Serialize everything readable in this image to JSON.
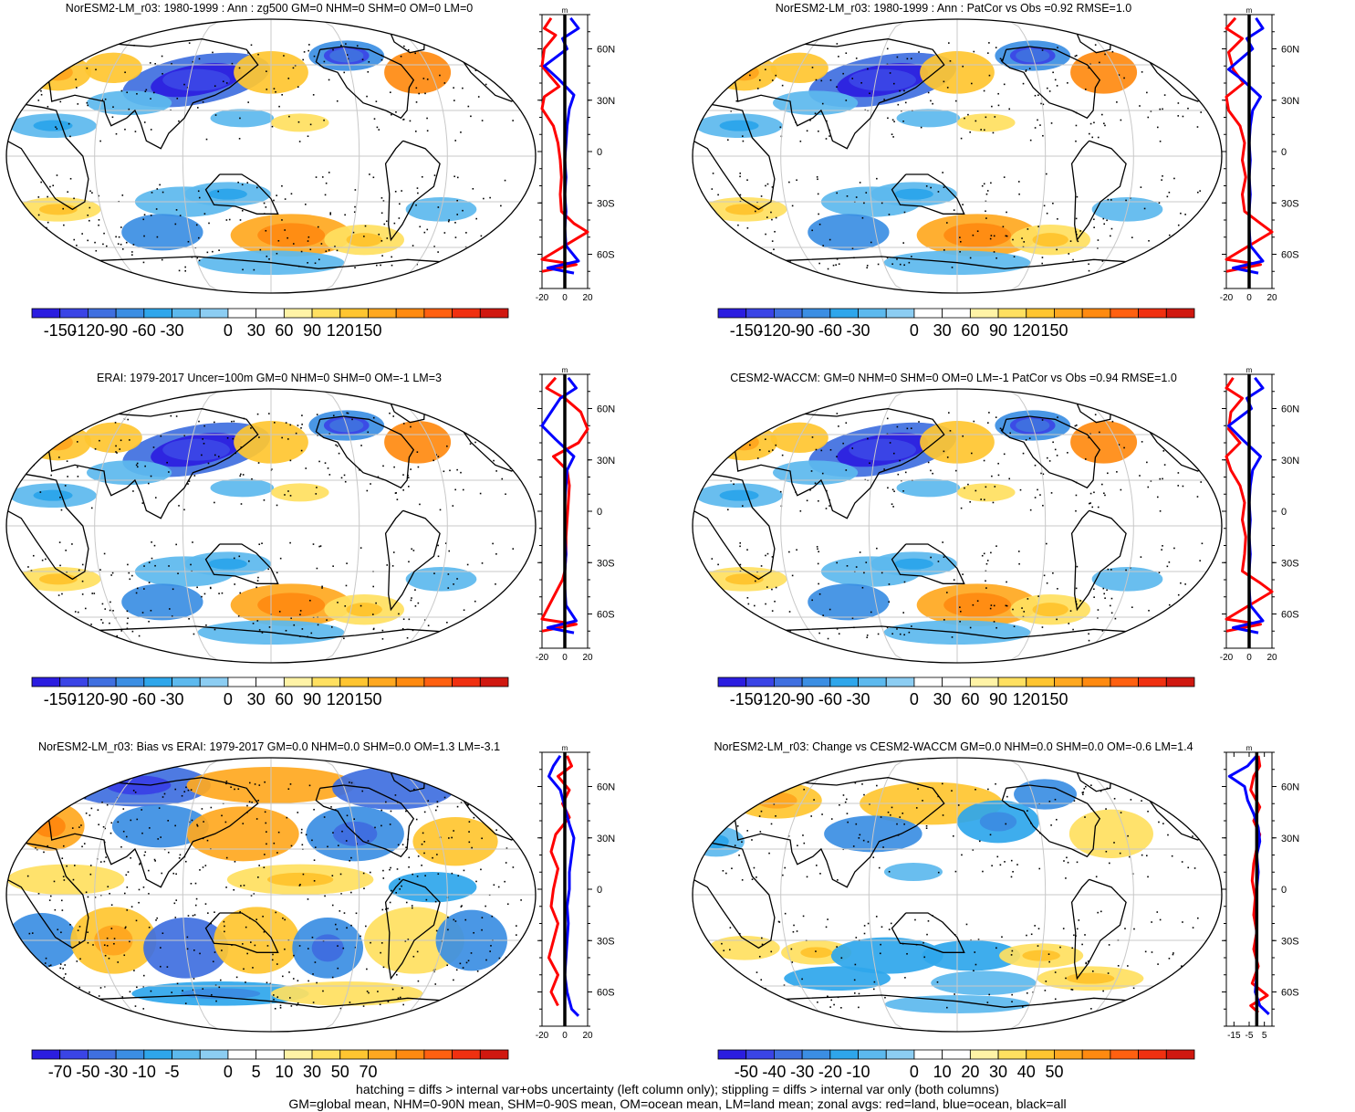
{
  "colors": {
    "scale": [
      "#2b1de0",
      "#3a44e6",
      "#3f6fe0",
      "#3b8ee3",
      "#2ea6eb",
      "#5cb9ee",
      "#8ccdf2",
      "#ffffff",
      "#ffffff",
      "#fff3a6",
      "#ffe060",
      "#ffc530",
      "#ffa820",
      "#ff8a10",
      "#ff6010",
      "#f03010",
      "#d01810"
    ],
    "land": "#ff0000",
    "ocean": "#0000ff",
    "all": "#000000",
    "grid": "#c8c8c8",
    "coast": "#000000"
  },
  "footer": {
    "line1": "hatching = diffs > internal var+obs uncertainty (left column only); stippling = diffs > internal var only (both columns)",
    "line2": "GM=global mean, NHM=0-90N mean, SHM=0-90S mean, OM=ocean mean, LM=land mean; zonal avgs: red=land, blue=ocean, black=all"
  },
  "chart_data": [
    {
      "type": "heatmap",
      "title": "NorESM2-LM_r03: 1980-1999 : Ann : zg500 GM=0 NHM=0 SHM=0 OM=0 LM=0",
      "colorbar_labels": [
        "-150",
        "-120",
        "-90",
        "-60",
        "-30",
        "0",
        "30",
        "60",
        "90",
        "120",
        "150"
      ],
      "zonal": {
        "unit": "m",
        "xlim": [
          -20,
          20
        ],
        "xticks": [
          "-20",
          "0",
          "20"
        ],
        "ylabels": [
          "60N",
          "30N",
          "0",
          "30S",
          "60S"
        ],
        "land": [
          [
            -12,
            78
          ],
          [
            -18,
            72
          ],
          [
            -8,
            68
          ],
          [
            -18,
            60
          ],
          [
            -20,
            50
          ],
          [
            -14,
            45
          ],
          [
            -5,
            38
          ],
          [
            -18,
            32
          ],
          [
            -20,
            25
          ],
          [
            -10,
            15
          ],
          [
            -6,
            5
          ],
          [
            -4,
            -5
          ],
          [
            -3,
            -15
          ],
          [
            -4,
            -25
          ],
          [
            -3,
            -35
          ],
          [
            8,
            -42
          ],
          [
            20,
            -47
          ],
          [
            -20,
            -63
          ],
          [
            10,
            -66
          ],
          [
            -20,
            -70
          ]
        ],
        "ocean": [
          [
            5,
            78
          ],
          [
            12,
            72
          ],
          [
            -2,
            66
          ],
          [
            2,
            60
          ],
          [
            -18,
            50
          ],
          [
            -5,
            42
          ],
          [
            8,
            33
          ],
          [
            4,
            25
          ],
          [
            2,
            15
          ],
          [
            1,
            5
          ],
          [
            0,
            -5
          ],
          [
            1,
            -15
          ],
          [
            0,
            -25
          ],
          [
            1,
            -35
          ],
          [
            0,
            -45
          ],
          [
            1,
            -55
          ],
          [
            12,
            -64
          ],
          [
            -15,
            -68
          ],
          [
            8,
            -71
          ]
        ]
      }
    },
    {
      "type": "heatmap",
      "title": "NorESM2-LM_r03: 1980-1999 : Ann : PatCor vs Obs =0.92 RMSE=1.0",
      "colorbar_labels": [
        "-150",
        "-120",
        "-90",
        "-60",
        "-30",
        "0",
        "30",
        "60",
        "90",
        "120",
        "150"
      ],
      "zonal": {
        "unit": "m",
        "xlim": [
          -20,
          20
        ],
        "xticks": [
          "-20",
          "0",
          "20"
        ],
        "ylabels": [
          "60N",
          "30N",
          "0",
          "30S",
          "60S"
        ],
        "land": [
          [
            -12,
            78
          ],
          [
            -20,
            72
          ],
          [
            -6,
            66
          ],
          [
            -18,
            58
          ],
          [
            -14,
            48
          ],
          [
            -5,
            40
          ],
          [
            -20,
            32
          ],
          [
            -18,
            24
          ],
          [
            -8,
            15
          ],
          [
            -4,
            5
          ],
          [
            -6,
            -5
          ],
          [
            -3,
            -15
          ],
          [
            -6,
            -25
          ],
          [
            -4,
            -35
          ],
          [
            10,
            -42
          ],
          [
            20,
            -47
          ],
          [
            -20,
            -63
          ],
          [
            10,
            -66
          ],
          [
            -20,
            -70
          ]
        ],
        "ocean": [
          [
            6,
            78
          ],
          [
            12,
            72
          ],
          [
            -2,
            66
          ],
          [
            3,
            60
          ],
          [
            -18,
            48
          ],
          [
            -6,
            42
          ],
          [
            10,
            32
          ],
          [
            3,
            24
          ],
          [
            1,
            15
          ],
          [
            0,
            5
          ],
          [
            1,
            -5
          ],
          [
            0,
            -15
          ],
          [
            1,
            -25
          ],
          [
            0,
            -35
          ],
          [
            0,
            -45
          ],
          [
            1,
            -55
          ],
          [
            12,
            -64
          ],
          [
            -14,
            -68
          ],
          [
            8,
            -71
          ]
        ]
      }
    },
    {
      "type": "heatmap",
      "title": "ERAI: 1979-2017 Uncer=100m GM=0 NHM=0 SHM=0 OM=-1 LM=3",
      "colorbar_labels": [
        "-150",
        "-120",
        "-90",
        "-60",
        "-30",
        "0",
        "30",
        "60",
        "90",
        "120",
        "150"
      ],
      "zonal": {
        "unit": "m",
        "xlim": [
          -20,
          20
        ],
        "xticks": [
          "-20",
          "0",
          "20"
        ],
        "ylabels": [
          "60N",
          "30N",
          "0",
          "30S",
          "60S"
        ],
        "land": [
          [
            -8,
            78
          ],
          [
            -16,
            72
          ],
          [
            0,
            66
          ],
          [
            14,
            58
          ],
          [
            20,
            48
          ],
          [
            12,
            40
          ],
          [
            -10,
            32
          ],
          [
            2,
            24
          ],
          [
            4,
            15
          ],
          [
            3,
            5
          ],
          [
            2,
            -5
          ],
          [
            1,
            -15
          ],
          [
            1,
            -25
          ],
          [
            0,
            -35
          ],
          [
            -2,
            -40
          ],
          [
            -20,
            -63
          ],
          [
            10,
            -66
          ],
          [
            -20,
            -70
          ]
        ],
        "ocean": [
          [
            3,
            78
          ],
          [
            10,
            72
          ],
          [
            -4,
            66
          ],
          [
            -10,
            60
          ],
          [
            -20,
            50
          ],
          [
            -8,
            42
          ],
          [
            8,
            32
          ],
          [
            2,
            24
          ],
          [
            1,
            15
          ],
          [
            0,
            5
          ],
          [
            0,
            -5
          ],
          [
            0,
            -15
          ],
          [
            1,
            -25
          ],
          [
            0,
            -35
          ],
          [
            0,
            -45
          ],
          [
            1,
            -55
          ],
          [
            10,
            -64
          ],
          [
            -15,
            -68
          ],
          [
            8,
            -71
          ]
        ]
      }
    },
    {
      "type": "heatmap",
      "title": "CESM2-WACCM: GM=0 NHM=0 SHM=0 OM=0 LM=-1 PatCor vs Obs =0.94 RMSE=1.0",
      "colorbar_labels": [
        "-150",
        "-120",
        "-90",
        "-60",
        "-30",
        "0",
        "30",
        "60",
        "90",
        "120",
        "150"
      ],
      "zonal": {
        "unit": "m",
        "xlim": [
          -20,
          20
        ],
        "xticks": [
          "-20",
          "0",
          "20"
        ],
        "ylabels": [
          "60N",
          "30N",
          "0",
          "30S",
          "60S"
        ],
        "land": [
          [
            -14,
            78
          ],
          [
            -20,
            72
          ],
          [
            -6,
            66
          ],
          [
            -16,
            58
          ],
          [
            -18,
            48
          ],
          [
            -8,
            40
          ],
          [
            -20,
            32
          ],
          [
            -16,
            24
          ],
          [
            -8,
            15
          ],
          [
            -4,
            5
          ],
          [
            -6,
            -5
          ],
          [
            -3,
            -15
          ],
          [
            -4,
            -25
          ],
          [
            -6,
            -35
          ],
          [
            10,
            -42
          ],
          [
            20,
            -47
          ],
          [
            -20,
            -63
          ],
          [
            10,
            -66
          ],
          [
            -20,
            -70
          ]
        ],
        "ocean": [
          [
            5,
            78
          ],
          [
            12,
            72
          ],
          [
            -2,
            66
          ],
          [
            2,
            60
          ],
          [
            -18,
            50
          ],
          [
            -6,
            42
          ],
          [
            10,
            32
          ],
          [
            3,
            24
          ],
          [
            1,
            15
          ],
          [
            0,
            5
          ],
          [
            1,
            -5
          ],
          [
            0,
            -15
          ],
          [
            1,
            -25
          ],
          [
            0,
            -35
          ],
          [
            0,
            -45
          ],
          [
            1,
            -55
          ],
          [
            12,
            -64
          ],
          [
            -14,
            -68
          ],
          [
            8,
            -71
          ]
        ]
      }
    },
    {
      "type": "heatmap",
      "title": "NorESM2-LM_r03: Bias vs ERAI: 1979-2017 GM=0.0 NHM=0.0 SHM=0.0 OM=1.3 LM=-3.1",
      "colorbar_labels": [
        "-70",
        "-50",
        "-30",
        "-10",
        "-5",
        "0",
        "5",
        "10",
        "30",
        "50",
        "70"
      ],
      "zonal": {
        "unit": "m",
        "xlim": [
          -20,
          20
        ],
        "xticks": [
          "-20",
          "0",
          "20"
        ],
        "ylabels": [
          "60N",
          "30N",
          "0",
          "30S",
          "60S"
        ],
        "land": [
          [
            2,
            78
          ],
          [
            6,
            72
          ],
          [
            -6,
            66
          ],
          [
            4,
            58
          ],
          [
            -2,
            50
          ],
          [
            4,
            42
          ],
          [
            -8,
            32
          ],
          [
            -12,
            22
          ],
          [
            -6,
            12
          ],
          [
            -10,
            0
          ],
          [
            -12,
            -10
          ],
          [
            -6,
            -20
          ],
          [
            -10,
            -30
          ],
          [
            -14,
            -40
          ],
          [
            -6,
            -50
          ],
          [
            -12,
            -60
          ],
          [
            -6,
            -68
          ]
        ],
        "ocean": [
          [
            -4,
            78
          ],
          [
            -10,
            72
          ],
          [
            -14,
            66
          ],
          [
            -4,
            58
          ],
          [
            0,
            48
          ],
          [
            4,
            38
          ],
          [
            8,
            30
          ],
          [
            6,
            20
          ],
          [
            4,
            10
          ],
          [
            4,
            0
          ],
          [
            2,
            -10
          ],
          [
            3,
            -20
          ],
          [
            2,
            -30
          ],
          [
            1,
            -40
          ],
          [
            0,
            -50
          ],
          [
            2,
            -60
          ],
          [
            6,
            -70
          ],
          [
            12,
            -74
          ]
        ]
      }
    },
    {
      "type": "heatmap",
      "title": "NorESM2-LM_r03: Change vs CESM2-WACCM GM=0.0 NHM=0.0 SHM=0.0 OM=-0.6 LM=1.4",
      "colorbar_labels": [
        "-50",
        "-40",
        "-30",
        "-20",
        "-10",
        "0",
        "10",
        "20",
        "30",
        "40",
        "50"
      ],
      "zonal": {
        "unit": "m",
        "xlim": [
          -20,
          10
        ],
        "xticks": [
          "-15",
          "-5",
          "5"
        ],
        "xtick_values": [
          -15,
          -5,
          5
        ],
        "ylabels": [
          "60N",
          "30N",
          "0",
          "30S",
          "60S"
        ],
        "land": [
          [
            1,
            78
          ],
          [
            2,
            72
          ],
          [
            -2,
            66
          ],
          [
            -4,
            58
          ],
          [
            2,
            48
          ],
          [
            -2,
            40
          ],
          [
            2,
            32
          ],
          [
            0,
            24
          ],
          [
            -2,
            15
          ],
          [
            -3,
            5
          ],
          [
            -1,
            -5
          ],
          [
            -2,
            -15
          ],
          [
            0,
            -25
          ],
          [
            -2,
            -35
          ],
          [
            1,
            -45
          ],
          [
            -3,
            -55
          ],
          [
            7,
            -62
          ],
          [
            -4,
            -68
          ],
          [
            1,
            -72
          ]
        ],
        "ocean": [
          [
            0,
            78
          ],
          [
            -6,
            72
          ],
          [
            -18,
            66
          ],
          [
            -8,
            60
          ],
          [
            -6,
            52
          ],
          [
            -2,
            44
          ],
          [
            1,
            36
          ],
          [
            2,
            28
          ],
          [
            0,
            20
          ],
          [
            1,
            10
          ],
          [
            0,
            0
          ],
          [
            0,
            -10
          ],
          [
            0,
            -20
          ],
          [
            0,
            -30
          ],
          [
            0,
            -40
          ],
          [
            0,
            -50
          ],
          [
            -1,
            -60
          ],
          [
            2,
            -68
          ],
          [
            8,
            -73
          ]
        ]
      }
    }
  ]
}
